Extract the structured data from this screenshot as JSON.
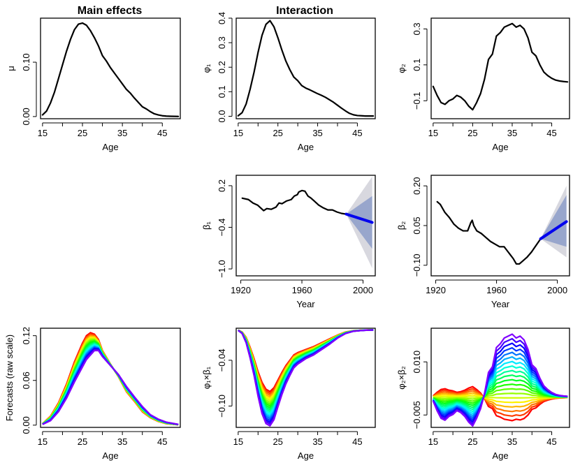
{
  "titles": {
    "main_effects": "Main effects",
    "interaction": "Interaction"
  },
  "chart_data": [
    {
      "id": "mu",
      "type": "line",
      "title": "Main effects",
      "xlabel": "Age",
      "ylabel": "μ",
      "x_ticks": [
        15,
        25,
        35,
        45
      ],
      "y_ticks": [
        "0.00",
        "0.10"
      ],
      "xlim": [
        14.5,
        49.5
      ],
      "ylim": [
        -0.004,
        0.181
      ],
      "series": [
        {
          "color": "#000000",
          "x": [
            15,
            16,
            17,
            18,
            19,
            20,
            21,
            22,
            23,
            24,
            25,
            26,
            27,
            28,
            29,
            30,
            31,
            32,
            33,
            34,
            35,
            36,
            37,
            38,
            39,
            40,
            41,
            42,
            43,
            44,
            45,
            46,
            47,
            48,
            49
          ],
          "y": [
            0.003,
            0.01,
            0.025,
            0.045,
            0.07,
            0.095,
            0.12,
            0.142,
            0.16,
            0.17,
            0.172,
            0.168,
            0.158,
            0.145,
            0.13,
            0.112,
            0.102,
            0.09,
            0.08,
            0.07,
            0.06,
            0.05,
            0.043,
            0.034,
            0.026,
            0.018,
            0.014,
            0.009,
            0.005,
            0.003,
            0.0015,
            0.0008,
            0.0005,
            0.0003,
            0.0002
          ]
        }
      ]
    },
    {
      "id": "phi1",
      "type": "line",
      "title": "Interaction",
      "xlabel": "Age",
      "ylabel": "φ₁",
      "x_ticks": [
        15,
        25,
        35,
        45
      ],
      "y_ticks": [
        "0.0",
        "0.1",
        "0.2",
        "0.3",
        "0.4"
      ],
      "xlim": [
        14.5,
        49.5
      ],
      "ylim": [
        -0.01,
        0.4
      ],
      "series": [
        {
          "color": "#000000",
          "x": [
            15,
            16,
            17,
            18,
            19,
            20,
            21,
            22,
            23,
            24,
            25,
            26,
            27,
            28,
            29,
            30,
            31,
            32,
            33,
            34,
            35,
            36,
            37,
            38,
            39,
            40,
            41,
            42,
            43,
            44,
            45,
            46,
            47,
            48,
            49
          ],
          "y": [
            0.002,
            0.015,
            0.05,
            0.11,
            0.18,
            0.26,
            0.33,
            0.375,
            0.39,
            0.365,
            0.32,
            0.27,
            0.225,
            0.19,
            0.16,
            0.145,
            0.125,
            0.115,
            0.108,
            0.1,
            0.092,
            0.085,
            0.077,
            0.067,
            0.057,
            0.045,
            0.033,
            0.022,
            0.012,
            0.006,
            0.003,
            0.002,
            0.001,
            0.001,
            0.001
          ]
        }
      ]
    },
    {
      "id": "phi2",
      "type": "line",
      "xlabel": "Age",
      "ylabel": "φ₂",
      "x_ticks": [
        15,
        25,
        35,
        45
      ],
      "y_ticks": [
        "−0.1",
        "0.1",
        "0.3"
      ],
      "xlim": [
        14.5,
        49.5
      ],
      "ylim": [
        -0.2,
        0.36
      ],
      "series": [
        {
          "color": "#000000",
          "x": [
            15,
            16,
            17,
            18,
            19,
            20,
            21,
            22,
            23,
            24,
            25,
            26,
            27,
            28,
            29,
            30,
            31,
            32,
            33,
            34,
            35,
            36,
            37,
            38,
            39,
            40,
            41,
            42,
            43,
            44,
            45,
            46,
            47,
            48,
            49
          ],
          "y": [
            -0.02,
            -0.07,
            -0.11,
            -0.12,
            -0.1,
            -0.09,
            -0.07,
            -0.08,
            -0.1,
            -0.13,
            -0.15,
            -0.11,
            -0.06,
            0.02,
            0.13,
            0.16,
            0.26,
            0.28,
            0.31,
            0.32,
            0.33,
            0.31,
            0.32,
            0.3,
            0.25,
            0.17,
            0.15,
            0.1,
            0.06,
            0.04,
            0.025,
            0.015,
            0.01,
            0.007,
            0.005
          ]
        }
      ]
    },
    {
      "id": "beta1",
      "type": "line",
      "xlabel": "Year",
      "ylabel": "β₁",
      "x_ticks": [
        1920,
        1960,
        2000
      ],
      "y_ticks": [
        "−1.0",
        "−0.4",
        "0.2"
      ],
      "xlim": [
        1917,
        2008
      ],
      "ylim": [
        -1.1,
        0.35
      ],
      "series": [
        {
          "color": "#000000",
          "x": [
            1921,
            1925,
            1928,
            1931,
            1933,
            1935,
            1937,
            1940,
            1943,
            1945,
            1947,
            1950,
            1953,
            1955,
            1957,
            1958,
            1960,
            1962,
            1964,
            1966,
            1968,
            1971,
            1974,
            1977,
            1980,
            1983,
            1986,
            1989
          ],
          "y": [
            0.02,
            0.0,
            -0.05,
            -0.08,
            -0.12,
            -0.16,
            -0.13,
            -0.14,
            -0.11,
            -0.05,
            -0.06,
            -0.02,
            0.0,
            0.05,
            0.07,
            0.11,
            0.13,
            0.12,
            0.05,
            0.02,
            -0.02,
            -0.08,
            -0.12,
            -0.15,
            -0.15,
            -0.18,
            -0.2,
            -0.21
          ]
        },
        {
          "name": "forecast",
          "color": "#0000ee",
          "x": [
            1989,
            2006
          ],
          "y": [
            -0.21,
            -0.33
          ]
        }
      ],
      "intervals": [
        {
          "color": "#d8d8df",
          "x": [
            1989,
            2006
          ],
          "lower": [
            -0.21,
            -0.99
          ],
          "upper": [
            -0.21,
            0.33
          ]
        },
        {
          "color": "#98a6cc",
          "x": [
            1989,
            2006
          ],
          "lower": [
            -0.21,
            -0.71
          ],
          "upper": [
            -0.21,
            0.05
          ]
        }
      ]
    },
    {
      "id": "beta2",
      "type": "line",
      "xlabel": "Year",
      "ylabel": "β₂",
      "x_ticks": [
        1920,
        1960,
        2000
      ],
      "y_ticks": [
        "−0.10",
        "0.05",
        "0.20"
      ],
      "xlim": [
        1917,
        2008
      ],
      "ylim": [
        -0.14,
        0.24
      ],
      "series": [
        {
          "color": "#000000",
          "x": [
            1921,
            1923,
            1926,
            1929,
            1932,
            1935,
            1938,
            1941,
            1943,
            1944,
            1945,
            1947,
            1950,
            1953,
            1956,
            1959,
            1962,
            1965,
            1967,
            1969,
            1971,
            1973,
            1975,
            1977,
            1980,
            1983,
            1986,
            1989
          ],
          "y": [
            0.14,
            0.13,
            0.1,
            0.08,
            0.055,
            0.04,
            0.03,
            0.03,
            0.06,
            0.07,
            0.05,
            0.03,
            0.02,
            0.005,
            -0.01,
            -0.02,
            -0.03,
            -0.03,
            -0.045,
            -0.06,
            -0.075,
            -0.095,
            -0.095,
            -0.085,
            -0.07,
            -0.05,
            -0.025,
            0.0
          ]
        },
        {
          "name": "forecast",
          "color": "#0000ee",
          "x": [
            1989,
            2006
          ],
          "y": [
            0.0,
            0.065
          ]
        }
      ],
      "intervals": [
        {
          "color": "#d8d8df",
          "x": [
            1989,
            2006
          ],
          "lower": [
            0.0,
            -0.07
          ],
          "upper": [
            0.0,
            0.2
          ]
        },
        {
          "color": "#98a6cc",
          "x": [
            1989,
            2006
          ],
          "lower": [
            0.0,
            -0.03
          ],
          "upper": [
            0.0,
            0.165
          ]
        }
      ]
    },
    {
      "id": "forecast_raw",
      "type": "line",
      "xlabel": "Age",
      "ylabel": "Forecasts (raw scale)",
      "x_ticks": [
        15,
        25,
        35,
        45
      ],
      "y_ticks": [
        "0.00",
        "0.06",
        "0.12"
      ],
      "xlim": [
        14.5,
        49.5
      ],
      "ylim": [
        -0.003,
        0.13
      ],
      "family": {
        "count": 20,
        "colors": "rainbow red-to-violet",
        "x": [
          15,
          17,
          19,
          21,
          23,
          25,
          26,
          27,
          28,
          29,
          30,
          32,
          34,
          36,
          38,
          40,
          42,
          44,
          46,
          48,
          49
        ],
        "first": [
          0.002,
          0.012,
          0.03,
          0.055,
          0.085,
          0.11,
          0.12,
          0.124,
          0.122,
          0.115,
          0.1,
          0.082,
          0.065,
          0.045,
          0.032,
          0.018,
          0.01,
          0.005,
          0.002,
          0.001,
          0.0005
        ],
        "last": [
          0.001,
          0.006,
          0.018,
          0.036,
          0.058,
          0.078,
          0.088,
          0.094,
          0.1,
          0.1,
          0.092,
          0.08,
          0.068,
          0.052,
          0.038,
          0.025,
          0.014,
          0.008,
          0.004,
          0.002,
          0.001
        ]
      }
    },
    {
      "id": "phi1_beta1",
      "type": "line",
      "xlabel": "Age",
      "ylabel": "φ₁×β₁",
      "x_ticks": [
        15,
        25,
        35,
        45
      ],
      "y_ticks": [
        "−0.10",
        "−0.04"
      ],
      "xlim": [
        14.5,
        49.5
      ],
      "ylim": [
        -0.128,
        0.002
      ],
      "family": {
        "count": 20,
        "colors": "rainbow red-to-violet",
        "x": [
          15,
          16,
          17,
          18,
          19,
          20,
          21,
          22,
          23,
          24,
          25,
          26,
          27,
          28,
          29,
          30,
          32,
          34,
          36,
          38,
          40,
          42,
          44,
          46,
          48,
          49
        ],
        "first": [
          -0.0004,
          -0.003,
          -0.01,
          -0.023,
          -0.038,
          -0.055,
          -0.069,
          -0.078,
          -0.081,
          -0.076,
          -0.066,
          -0.056,
          -0.047,
          -0.04,
          -0.033,
          -0.03,
          -0.026,
          -0.022,
          -0.017,
          -0.012,
          -0.007,
          -0.003,
          -0.0012,
          -0.0006,
          -0.0002,
          -0.0002
        ],
        "last": [
          -0.0008,
          -0.005,
          -0.017,
          -0.037,
          -0.06,
          -0.087,
          -0.11,
          -0.123,
          -0.126,
          -0.118,
          -0.101,
          -0.085,
          -0.071,
          -0.06,
          -0.05,
          -0.045,
          -0.038,
          -0.033,
          -0.026,
          -0.019,
          -0.011,
          -0.005,
          -0.002,
          -0.001,
          -0.0004,
          -0.0003
        ]
      }
    },
    {
      "id": "phi2_beta2",
      "type": "line",
      "xlabel": "Age",
      "ylabel": "φ₂×β₂",
      "x_ticks": [
        15,
        25,
        35,
        45
      ],
      "y_ticks": [
        "−0.005",
        "0.010"
      ],
      "xlim": [
        14.5,
        49.5
      ],
      "ylim": [
        -0.0085,
        0.0195
      ],
      "family": {
        "count": 20,
        "colors": "rainbow red-to-violet",
        "phi2": [
          -0.02,
          -0.07,
          -0.11,
          -0.12,
          -0.1,
          -0.09,
          -0.07,
          -0.08,
          -0.1,
          -0.13,
          -0.15,
          -0.11,
          -0.06,
          0.02,
          0.13,
          0.16,
          0.26,
          0.28,
          0.31,
          0.32,
          0.33,
          0.31,
          0.32,
          0.3,
          0.25,
          0.17,
          0.15,
          0.1,
          0.06,
          0.04,
          0.025,
          0.015,
          0.01,
          0.007,
          0.005
        ],
        "beta_range": [
          -0.02,
          0.054
        ]
      }
    }
  ]
}
